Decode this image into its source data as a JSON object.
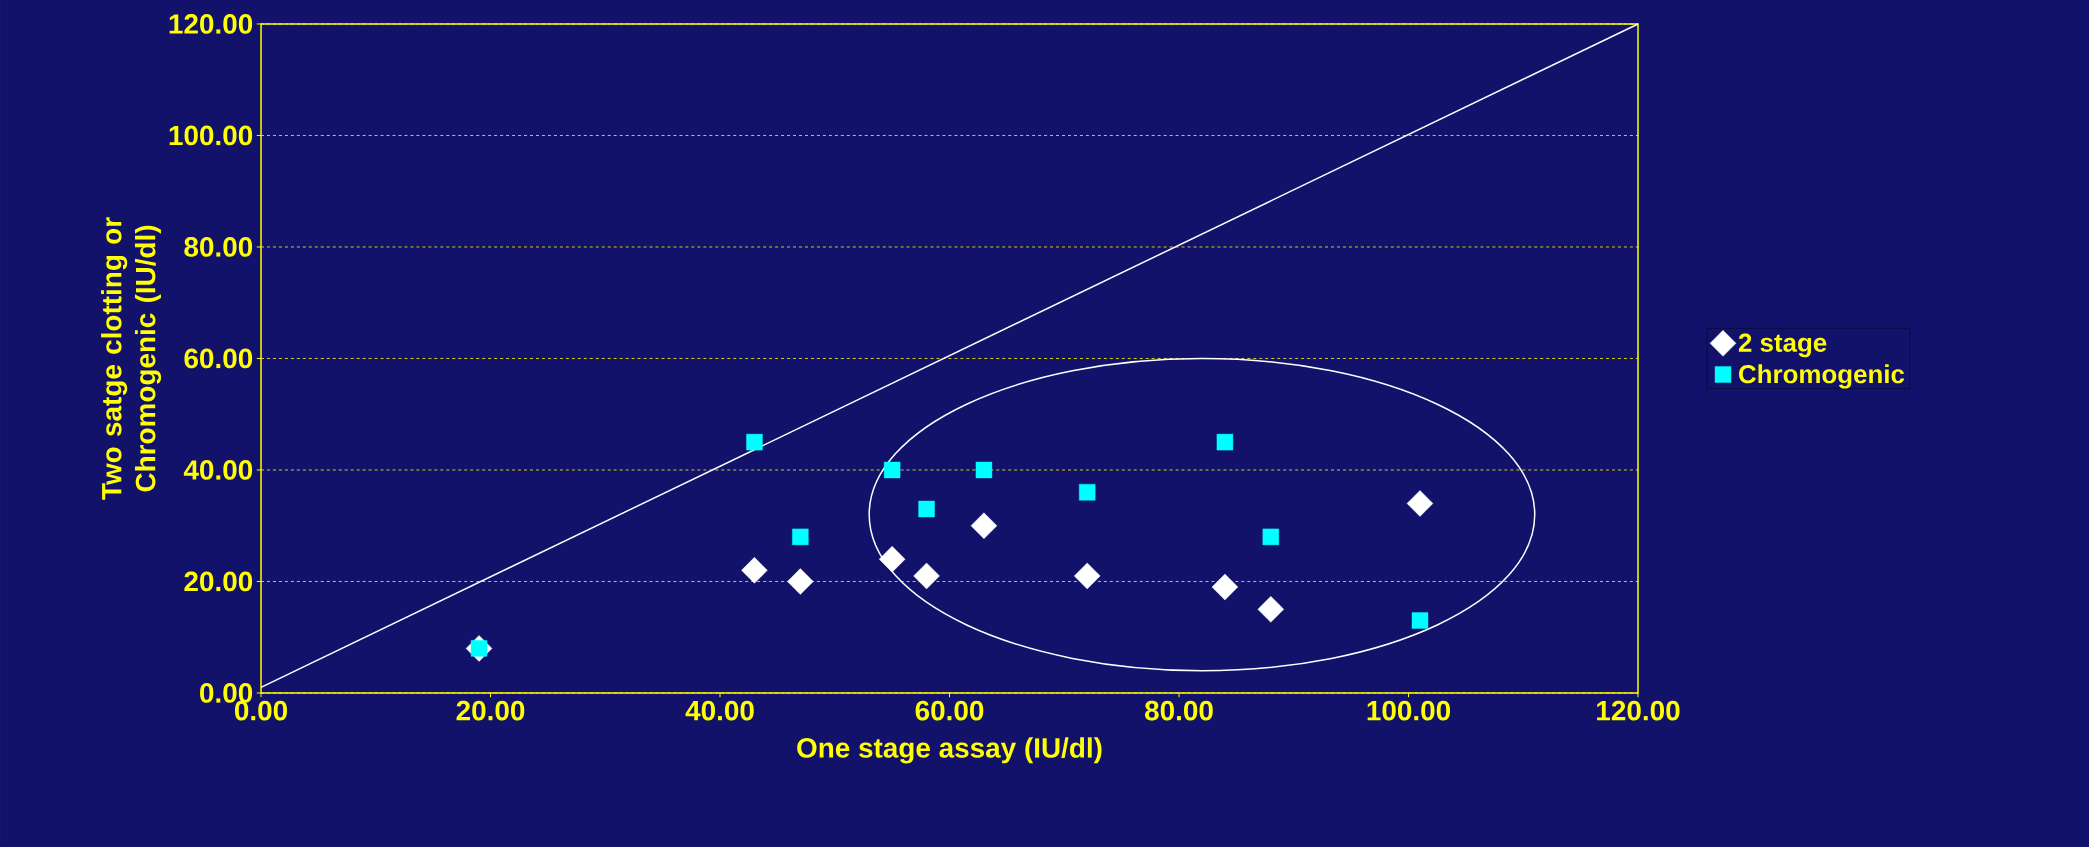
{
  "chart_data": {
    "type": "scatter",
    "xlabel": "One stage assay (IU/dl)",
    "ylabel": "Two satge clotting or Chromogenic (IU/dl)",
    "xlim": [
      0,
      120
    ],
    "ylim": [
      0,
      120
    ],
    "xticks": [
      {
        "value": 0,
        "label": "0.00"
      },
      {
        "value": 20,
        "label": "20.00"
      },
      {
        "value": 40,
        "label": "40.00"
      },
      {
        "value": 60,
        "label": "60.00"
      },
      {
        "value": 80,
        "label": "80.00"
      },
      {
        "value": 100,
        "label": "100.00"
      },
      {
        "value": 120,
        "label": "120.00"
      }
    ],
    "yticks": [
      {
        "value": 0,
        "label": "0.00"
      },
      {
        "value": 20,
        "label": "20.00"
      },
      {
        "value": 40,
        "label": "40.00"
      },
      {
        "value": 60,
        "label": "60.00"
      },
      {
        "value": 80,
        "label": "80.00"
      },
      {
        "value": 100,
        "label": "100.00"
      },
      {
        "value": 120,
        "label": "120.00"
      }
    ],
    "grid": "y",
    "legend": "right",
    "x": [
      19,
      43,
      47,
      55,
      58,
      63,
      72,
      84,
      88,
      101
    ],
    "series": [
      {
        "name": "2 stage",
        "color": "#ffffff",
        "marker": "diamond",
        "values": [
          8,
          22,
          20,
          24,
          21,
          30,
          21,
          19,
          15,
          34
        ]
      },
      {
        "name": "Chromogenic",
        "color": "#00ffff",
        "marker": "square",
        "values": [
          8,
          45,
          28,
          40,
          33,
          40,
          36,
          45,
          28,
          13
        ]
      },
      {
        "type": "line",
        "color": "#ffffff",
        "marker": "none",
        "x": [
          0,
          120
        ],
        "values": [
          1,
          120
        ]
      }
    ]
  }
}
